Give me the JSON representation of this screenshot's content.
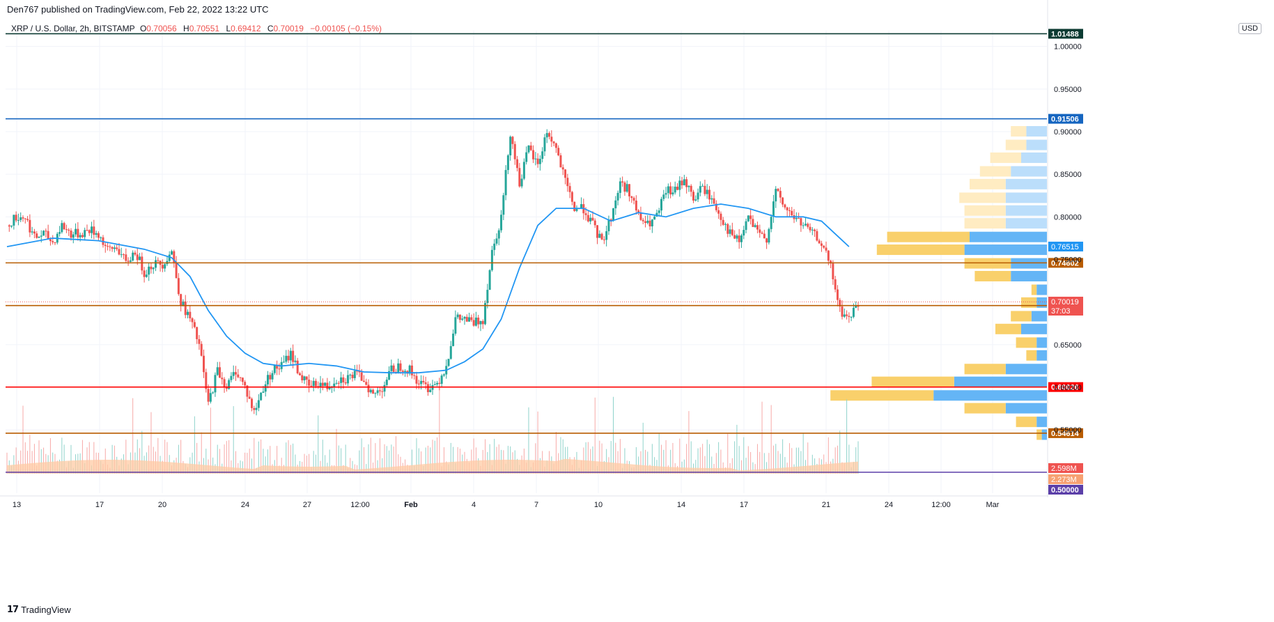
{
  "header": {
    "credit": "Den767 published on TradingView.com, Feb 22, 2022 13:22 UTC",
    "symbol": "XRP / U.S. Dollar, 2h, BITSTAMP",
    "o_label": "O",
    "o_value": "0.70056",
    "h_label": "H",
    "h_value": "0.70551",
    "l_label": "L",
    "l_value": "0.69412",
    "c_label": "C",
    "c_value": "0.70019",
    "change": "−0.00105 (−0.15%)",
    "currency": "USD"
  },
  "footer": {
    "brand": "TradingView"
  },
  "colors": {
    "up": "#26a69a",
    "down": "#ef5350",
    "ma": "#2196f3",
    "volume_ma": "#ffcba4"
  },
  "chart_data": {
    "type": "candlestick",
    "price_axis": {
      "ticks": [
        "1.00000",
        "0.95000",
        "0.90000",
        "0.85000",
        "0.80000",
        "0.75000",
        "0.65000",
        "0.60000",
        "0.55000"
      ],
      "tick_values": [
        1.0,
        0.95,
        0.9,
        0.85,
        0.8,
        0.75,
        0.65,
        0.6,
        0.55
      ],
      "range": [
        0.5,
        1.04
      ]
    },
    "time_axis": {
      "labels": [
        "13",
        "17",
        "20",
        "24",
        "27",
        "12:00",
        "Feb",
        "4",
        "7",
        "10",
        "14",
        "17",
        "21",
        "24",
        "12:00",
        "Mar"
      ],
      "bold": [
        "Feb"
      ]
    },
    "horizontal_lines": [
      {
        "price": 1.01488,
        "label": "1.01488",
        "color": "#0c3b32"
      },
      {
        "price": 0.91506,
        "label": "0.91506",
        "color": "#1565c0"
      },
      {
        "price": 0.74602,
        "label": "0.74602",
        "color": "#b85c00"
      },
      {
        "price": 0.69592,
        "label": "0.69592",
        "color": "#b85c00"
      },
      {
        "price": 0.60026,
        "label": "0.60026",
        "color": "#ff0000"
      },
      {
        "price": 0.54614,
        "label": "0.54614",
        "color": "#b85c00"
      },
      {
        "price": 0.5,
        "label": "0.50000",
        "color": "#5b3fa8"
      }
    ],
    "markers": [
      {
        "label": "0.76515",
        "price": 0.76515,
        "color": "#2196f3"
      },
      {
        "label": "0.70019",
        "price": 0.70019,
        "color": "#ef5350"
      },
      {
        "label": "37:03",
        "price": 0.69,
        "color": "#ef5350"
      },
      {
        "label": "2.598M",
        "price": 0.521,
        "color": "#ef5350"
      },
      {
        "label": "2.273M",
        "price": 0.511,
        "color": "#f7a172"
      }
    ],
    "last_price": 0.70019,
    "price_path": [
      [
        0,
        0.79
      ],
      [
        2,
        0.8
      ],
      [
        4,
        0.8
      ],
      [
        6,
        0.775
      ],
      [
        8,
        0.78
      ],
      [
        10,
        0.77
      ],
      [
        12,
        0.79
      ],
      [
        14,
        0.78
      ],
      [
        16,
        0.78
      ],
      [
        18,
        0.785
      ],
      [
        20,
        0.78
      ],
      [
        22,
        0.76
      ],
      [
        24,
        0.765
      ],
      [
        26,
        0.745
      ],
      [
        28,
        0.76
      ],
      [
        30,
        0.735
      ],
      [
        32,
        0.745
      ],
      [
        34,
        0.745
      ],
      [
        36,
        0.76
      ],
      [
        38,
        0.7
      ],
      [
        40,
        0.68
      ],
      [
        42,
        0.65
      ],
      [
        44,
        0.58
      ],
      [
        46,
        0.62
      ],
      [
        48,
        0.6
      ],
      [
        50,
        0.62
      ],
      [
        52,
        0.6
      ],
      [
        54,
        0.57
      ],
      [
        56,
        0.6
      ],
      [
        58,
        0.62
      ],
      [
        60,
        0.625
      ],
      [
        62,
        0.64
      ],
      [
        64,
        0.615
      ],
      [
        66,
        0.6
      ],
      [
        68,
        0.605
      ],
      [
        70,
        0.6
      ],
      [
        72,
        0.61
      ],
      [
        74,
        0.61
      ],
      [
        76,
        0.615
      ],
      [
        78,
        0.61
      ],
      [
        80,
        0.59
      ],
      [
        82,
        0.6
      ],
      [
        84,
        0.62
      ],
      [
        86,
        0.625
      ],
      [
        88,
        0.62
      ],
      [
        90,
        0.605
      ],
      [
        92,
        0.6
      ],
      [
        94,
        0.605
      ],
      [
        96,
        0.625
      ],
      [
        98,
        0.68
      ],
      [
        100,
        0.68
      ],
      [
        102,
        0.675
      ],
      [
        104,
        0.68
      ],
      [
        106,
        0.76
      ],
      [
        108,
        0.8
      ],
      [
        110,
        0.9
      ],
      [
        112,
        0.84
      ],
      [
        114,
        0.88
      ],
      [
        116,
        0.86
      ],
      [
        118,
        0.9
      ],
      [
        120,
        0.88
      ],
      [
        122,
        0.84
      ],
      [
        124,
        0.81
      ],
      [
        126,
        0.81
      ],
      [
        128,
        0.79
      ],
      [
        130,
        0.77
      ],
      [
        132,
        0.8
      ],
      [
        134,
        0.84
      ],
      [
        136,
        0.83
      ],
      [
        138,
        0.8
      ],
      [
        140,
        0.79
      ],
      [
        142,
        0.8
      ],
      [
        144,
        0.83
      ],
      [
        146,
        0.83
      ],
      [
        148,
        0.845
      ],
      [
        150,
        0.82
      ],
      [
        152,
        0.835
      ],
      [
        154,
        0.82
      ],
      [
        156,
        0.8
      ],
      [
        158,
        0.78
      ],
      [
        160,
        0.77
      ],
      [
        162,
        0.8
      ],
      [
        164,
        0.78
      ],
      [
        166,
        0.775
      ],
      [
        168,
        0.83
      ],
      [
        170,
        0.81
      ],
      [
        172,
        0.8
      ],
      [
        174,
        0.79
      ],
      [
        176,
        0.78
      ],
      [
        178,
        0.77
      ],
      [
        180,
        0.74
      ],
      [
        182,
        0.69
      ],
      [
        184,
        0.68
      ],
      [
        186,
        0.7
      ]
    ],
    "moving_average": [
      [
        0,
        0.765
      ],
      [
        10,
        0.775
      ],
      [
        20,
        0.772
      ],
      [
        30,
        0.762
      ],
      [
        36,
        0.752
      ],
      [
        40,
        0.73
      ],
      [
        44,
        0.69
      ],
      [
        48,
        0.66
      ],
      [
        52,
        0.64
      ],
      [
        56,
        0.628
      ],
      [
        60,
        0.625
      ],
      [
        66,
        0.628
      ],
      [
        72,
        0.625
      ],
      [
        78,
        0.618
      ],
      [
        84,
        0.617
      ],
      [
        90,
        0.617
      ],
      [
        96,
        0.62
      ],
      [
        100,
        0.63
      ],
      [
        104,
        0.645
      ],
      [
        108,
        0.68
      ],
      [
        112,
        0.74
      ],
      [
        116,
        0.79
      ],
      [
        120,
        0.81
      ],
      [
        126,
        0.81
      ],
      [
        132,
        0.795
      ],
      [
        138,
        0.805
      ],
      [
        144,
        0.8
      ],
      [
        150,
        0.81
      ],
      [
        156,
        0.815
      ],
      [
        162,
        0.81
      ],
      [
        168,
        0.8
      ],
      [
        174,
        0.8
      ],
      [
        178,
        0.795
      ],
      [
        182,
        0.775
      ],
      [
        184,
        0.765
      ]
    ],
    "volume_profile": [
      {
        "price": 0.9,
        "buy": 3,
        "sell": 4
      },
      {
        "price": 0.884,
        "buy": 4,
        "sell": 4
      },
      {
        "price": 0.869,
        "buy": 6,
        "sell": 5
      },
      {
        "price": 0.853,
        "buy": 6,
        "sell": 7
      },
      {
        "price": 0.838,
        "buy": 7,
        "sell": 8
      },
      {
        "price": 0.822,
        "buy": 9,
        "sell": 8
      },
      {
        "price": 0.807,
        "buy": 8,
        "sell": 8
      },
      {
        "price": 0.792,
        "buy": 8,
        "sell": 8
      },
      {
        "price": 0.776,
        "buy": 16,
        "sell": 15
      },
      {
        "price": 0.761,
        "buy": 17,
        "sell": 16
      },
      {
        "price": 0.745,
        "buy": 9,
        "sell": 7
      },
      {
        "price": 0.73,
        "buy": 7,
        "sell": 7
      },
      {
        "price": 0.714,
        "buy": 1,
        "sell": 2
      },
      {
        "price": 0.699,
        "buy": 3,
        "sell": 2
      },
      {
        "price": 0.683,
        "buy": 4,
        "sell": 3
      },
      {
        "price": 0.668,
        "buy": 5,
        "sell": 5
      },
      {
        "price": 0.652,
        "buy": 4,
        "sell": 2
      },
      {
        "price": 0.637,
        "buy": 2,
        "sell": 2
      },
      {
        "price": 0.621,
        "buy": 8,
        "sell": 8
      },
      {
        "price": 0.606,
        "buy": 16,
        "sell": 18
      },
      {
        "price": 0.59,
        "buy": 20,
        "sell": 22
      },
      {
        "price": 0.575,
        "buy": 8,
        "sell": 8
      },
      {
        "price": 0.559,
        "buy": 4,
        "sell": 2
      },
      {
        "price": 0.544,
        "buy": 1,
        "sell": 1
      }
    ]
  }
}
